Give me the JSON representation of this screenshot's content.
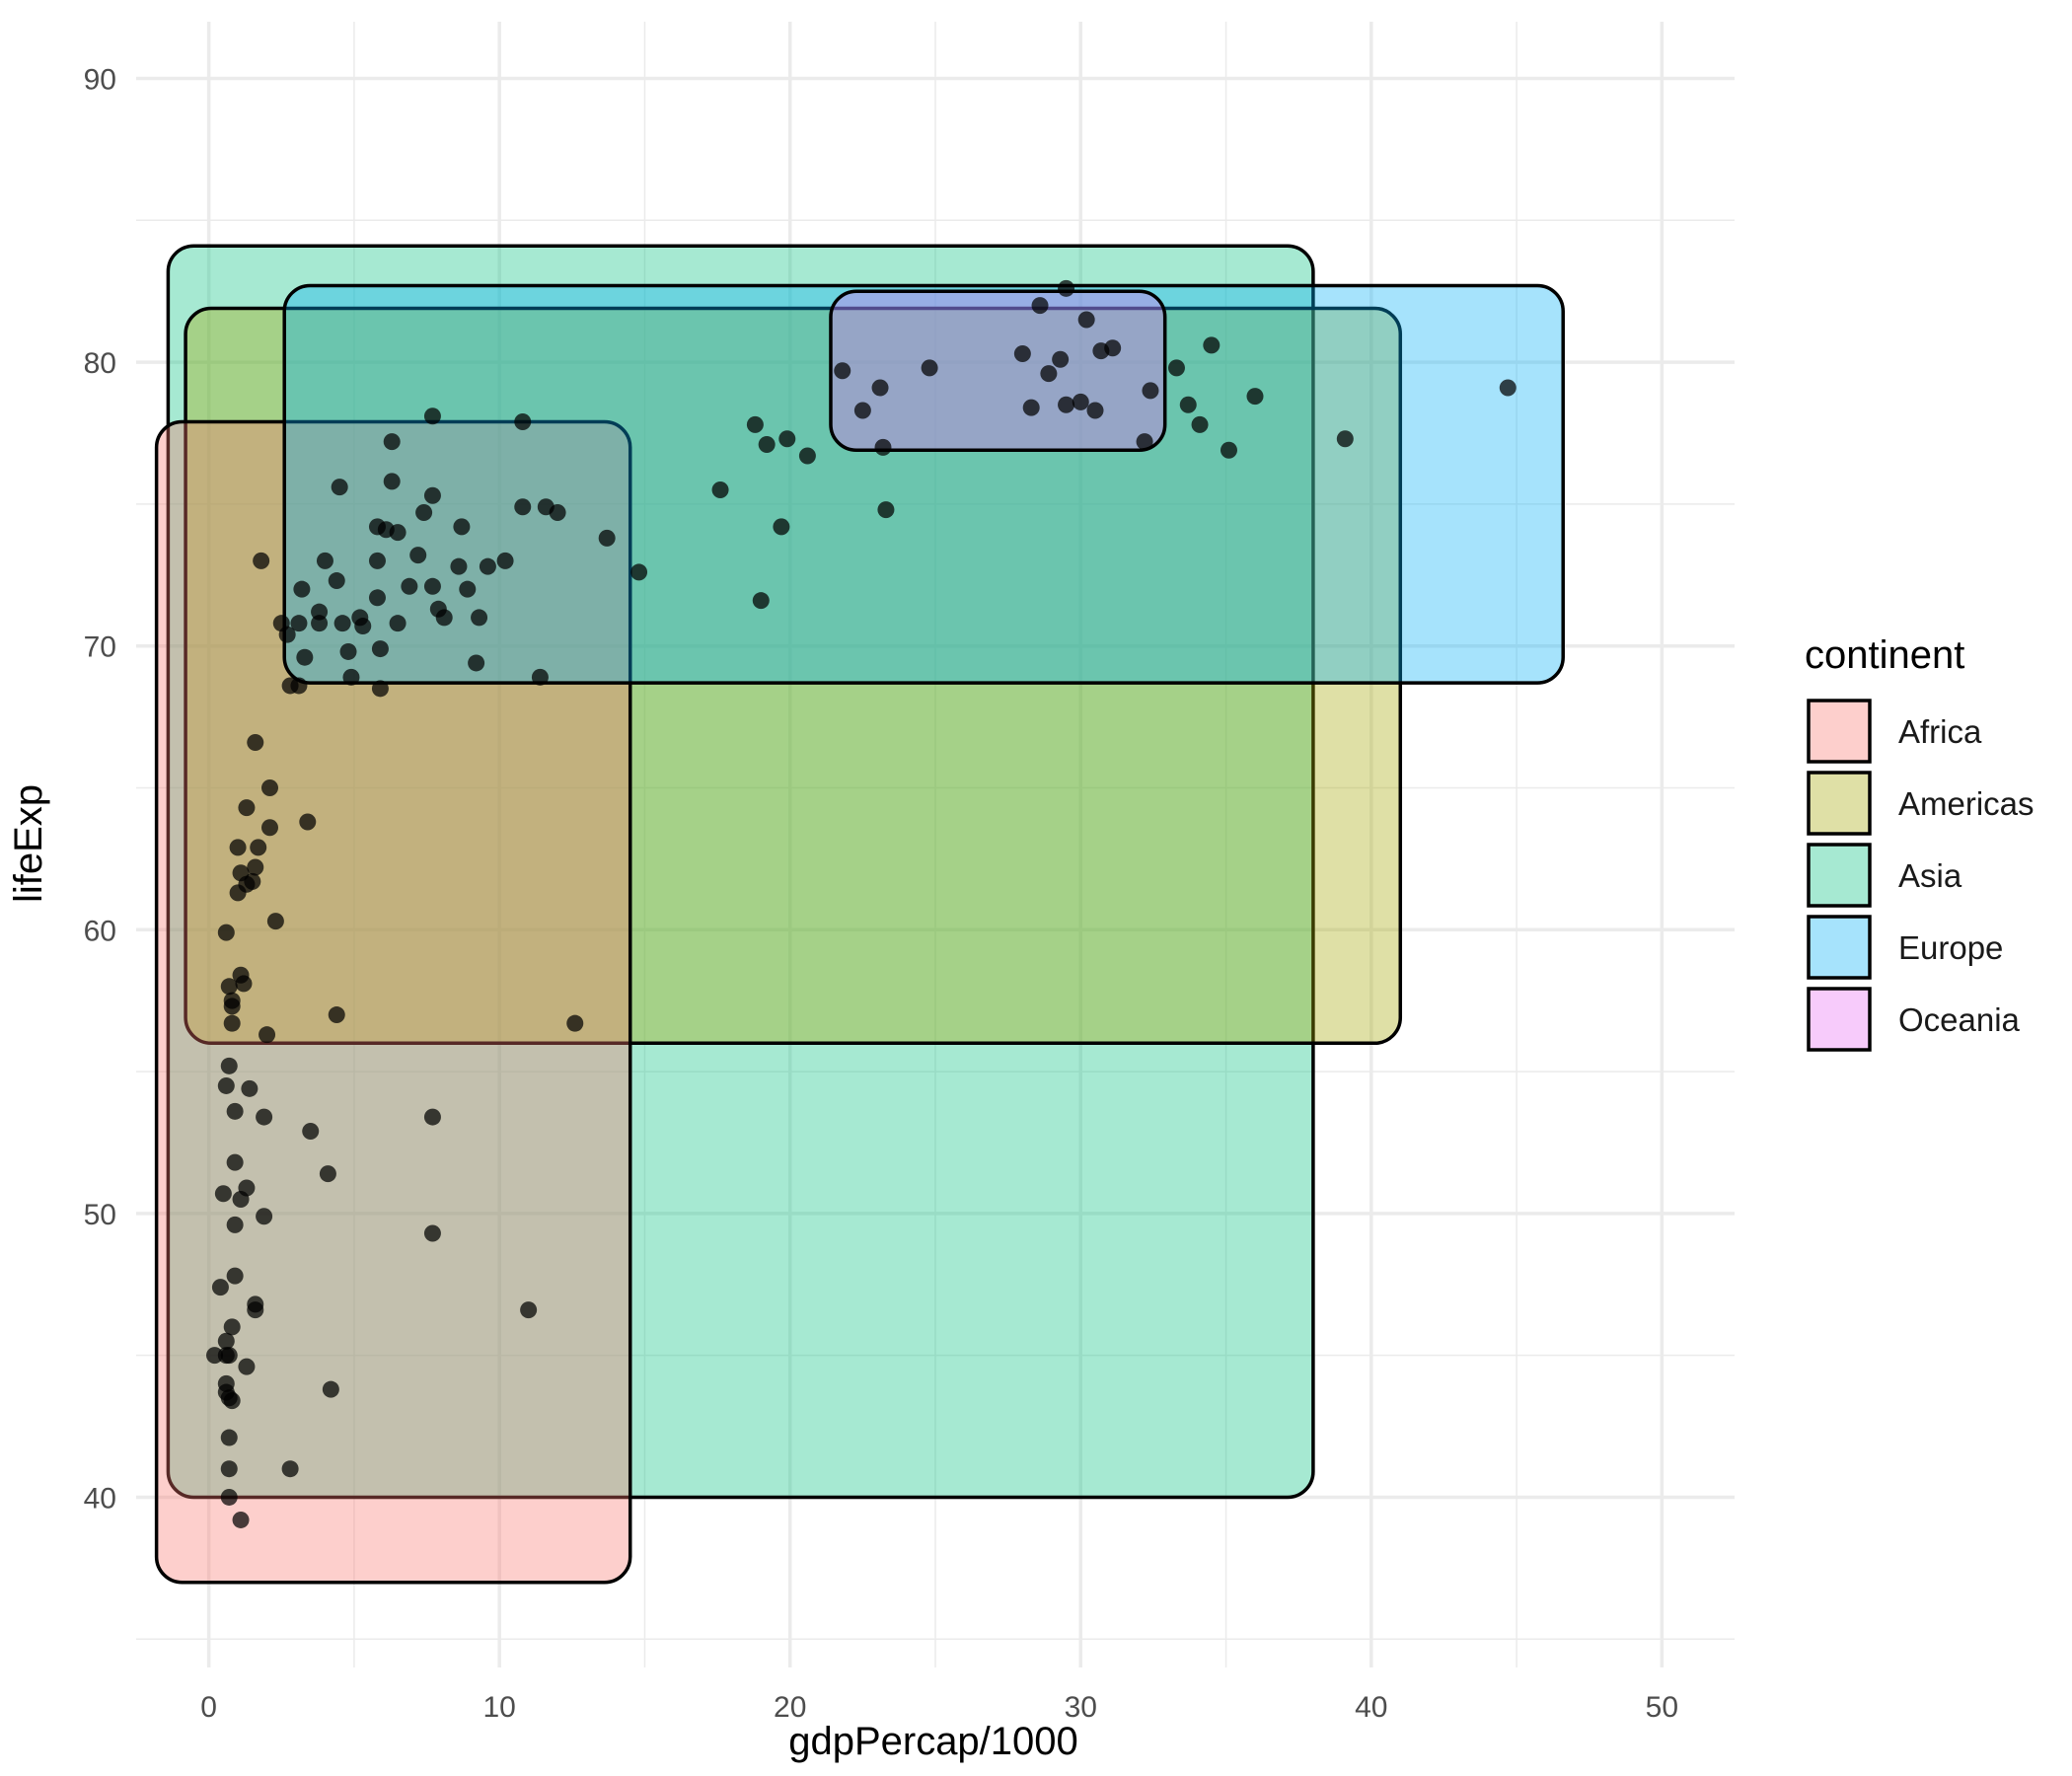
{
  "chart_data": {
    "type": "scatter",
    "title": "",
    "xlabel": "gdpPercap/1000",
    "ylabel": "lifeExp",
    "xlim": [
      -2.5,
      52.5
    ],
    "ylim": [
      34,
      92
    ],
    "x_ticks": [
      0,
      10,
      20,
      30,
      40,
      50
    ],
    "y_ticks": [
      40,
      50,
      60,
      70,
      80,
      90
    ],
    "grid": true,
    "legend": {
      "title": "continent",
      "position": "right",
      "entries": [
        "Africa",
        "Americas",
        "Asia",
        "Europe",
        "Oceania"
      ]
    },
    "colors": {
      "Africa": "#F8766D",
      "Americas": "#A3A500",
      "Asia": "#00BF7D",
      "Europe": "#00B0F6",
      "Oceania": "#E76BF3",
      "points": "#000000",
      "box_outline": "#000000",
      "grid": "#ebebeb"
    },
    "box_alpha": 0.35,
    "group_boxes": [
      {
        "name": "Asia",
        "xmin": -1.4,
        "xmax": 38.0,
        "ymin": 40.0,
        "ymax": 84.1
      },
      {
        "name": "Americas",
        "xmin": -0.8,
        "xmax": 41.0,
        "ymin": 56.0,
        "ymax": 81.9
      },
      {
        "name": "Africa",
        "xmin": -1.8,
        "xmax": 14.5,
        "ymin": 37.0,
        "ymax": 77.9
      },
      {
        "name": "Europe",
        "xmin": 2.6,
        "xmax": 46.6,
        "ymin": 68.7,
        "ymax": 82.7
      },
      {
        "name": "Oceania",
        "xmin": 21.4,
        "xmax": 32.9,
        "ymin": 76.9,
        "ymax": 82.5
      }
    ],
    "points": [
      [
        29.5,
        82.6
      ],
      [
        28.6,
        82.0
      ],
      [
        30.2,
        81.5
      ],
      [
        31.1,
        80.5
      ],
      [
        30.7,
        80.4
      ],
      [
        34.5,
        80.6
      ],
      [
        29.3,
        80.1
      ],
      [
        28.9,
        79.6
      ],
      [
        28.0,
        80.3
      ],
      [
        24.8,
        79.8
      ],
      [
        21.8,
        79.7
      ],
      [
        23.1,
        79.1
      ],
      [
        22.5,
        78.3
      ],
      [
        28.3,
        78.4
      ],
      [
        29.5,
        78.5
      ],
      [
        30.0,
        78.6
      ],
      [
        30.5,
        78.3
      ],
      [
        32.4,
        79.0
      ],
      [
        33.3,
        79.8
      ],
      [
        33.7,
        78.5
      ],
      [
        34.1,
        77.8
      ],
      [
        36.0,
        78.8
      ],
      [
        35.1,
        76.9
      ],
      [
        32.2,
        77.2
      ],
      [
        23.2,
        77.0
      ],
      [
        23.3,
        74.8
      ],
      [
        44.7,
        79.1
      ],
      [
        39.1,
        77.3
      ],
      [
        18.8,
        77.8
      ],
      [
        19.2,
        77.1
      ],
      [
        19.9,
        77.3
      ],
      [
        20.6,
        76.7
      ],
      [
        17.6,
        75.5
      ],
      [
        19.7,
        74.2
      ],
      [
        19.0,
        71.6
      ],
      [
        14.8,
        72.6
      ],
      [
        13.7,
        73.8
      ],
      [
        12.0,
        74.7
      ],
      [
        11.6,
        74.9
      ],
      [
        10.8,
        74.9
      ],
      [
        11.4,
        68.9
      ],
      [
        10.8,
        77.9
      ],
      [
        9.6,
        72.8
      ],
      [
        10.2,
        73.0
      ],
      [
        9.3,
        71.0
      ],
      [
        8.9,
        72.0
      ],
      [
        9.2,
        69.4
      ],
      [
        8.6,
        72.8
      ],
      [
        8.7,
        74.2
      ],
      [
        7.7,
        78.1
      ],
      [
        7.7,
        75.3
      ],
      [
        7.4,
        74.7
      ],
      [
        7.2,
        73.2
      ],
      [
        7.7,
        72.1
      ],
      [
        6.9,
        72.1
      ],
      [
        7.9,
        71.3
      ],
      [
        8.1,
        71.0
      ],
      [
        6.5,
        74.0
      ],
      [
        6.1,
        74.1
      ],
      [
        5.8,
        74.2
      ],
      [
        6.3,
        75.8
      ],
      [
        6.3,
        77.2
      ],
      [
        5.8,
        73.0
      ],
      [
        5.8,
        71.7
      ],
      [
        6.5,
        70.8
      ],
      [
        5.9,
        69.9
      ],
      [
        5.9,
        68.5
      ],
      [
        5.2,
        71.0
      ],
      [
        5.3,
        70.7
      ],
      [
        4.5,
        75.6
      ],
      [
        4.6,
        70.8
      ],
      [
        4.8,
        69.8
      ],
      [
        4.9,
        68.9
      ],
      [
        4.4,
        72.3
      ],
      [
        4.0,
        73.0
      ],
      [
        3.8,
        70.8
      ],
      [
        3.8,
        71.2
      ],
      [
        3.2,
        72.0
      ],
      [
        3.1,
        70.8
      ],
      [
        3.3,
        69.6
      ],
      [
        2.7,
        70.4
      ],
      [
        2.5,
        70.8
      ],
      [
        2.8,
        68.6
      ],
      [
        3.1,
        68.6
      ],
      [
        1.8,
        73.0
      ],
      [
        1.6,
        66.6
      ],
      [
        2.1,
        65.0
      ],
      [
        1.3,
        64.3
      ],
      [
        2.1,
        63.6
      ],
      [
        3.4,
        63.8
      ],
      [
        1.7,
        62.9
      ],
      [
        1.0,
        62.9
      ],
      [
        1.1,
        62.0
      ],
      [
        1.6,
        62.2
      ],
      [
        1.5,
        61.7
      ],
      [
        1.3,
        61.6
      ],
      [
        1.0,
        61.3
      ],
      [
        2.3,
        60.3
      ],
      [
        0.6,
        59.9
      ],
      [
        1.1,
        58.4
      ],
      [
        1.2,
        58.1
      ],
      [
        0.7,
        58.0
      ],
      [
        0.8,
        57.5
      ],
      [
        0.8,
        57.3
      ],
      [
        0.8,
        56.7
      ],
      [
        2.0,
        56.3
      ],
      [
        4.4,
        57.0
      ],
      [
        12.6,
        56.7
      ],
      [
        0.7,
        55.2
      ],
      [
        0.6,
        54.5
      ],
      [
        1.4,
        54.4
      ],
      [
        0.9,
        53.6
      ],
      [
        1.9,
        53.4
      ],
      [
        3.5,
        52.9
      ],
      [
        7.7,
        53.4
      ],
      [
        4.1,
        51.4
      ],
      [
        0.9,
        51.8
      ],
      [
        1.3,
        50.9
      ],
      [
        0.5,
        50.7
      ],
      [
        1.1,
        50.5
      ],
      [
        1.9,
        49.9
      ],
      [
        0.9,
        49.6
      ],
      [
        7.7,
        49.3
      ],
      [
        0.9,
        47.8
      ],
      [
        0.4,
        47.4
      ],
      [
        1.6,
        46.8
      ],
      [
        1.6,
        46.6
      ],
      [
        0.8,
        46.0
      ],
      [
        0.6,
        45.5
      ],
      [
        11.0,
        46.6
      ],
      [
        1.3,
        44.6
      ],
      [
        0.2,
        45.0
      ],
      [
        0.6,
        45.0
      ],
      [
        0.7,
        45.0
      ],
      [
        0.6,
        44.0
      ],
      [
        0.6,
        43.7
      ],
      [
        0.7,
        43.5
      ],
      [
        0.8,
        43.4
      ],
      [
        4.2,
        43.8
      ],
      [
        0.7,
        42.1
      ],
      [
        2.8,
        41.0
      ],
      [
        0.7,
        41.0
      ],
      [
        0.7,
        40.0
      ],
      [
        1.1,
        39.2
      ]
    ]
  }
}
